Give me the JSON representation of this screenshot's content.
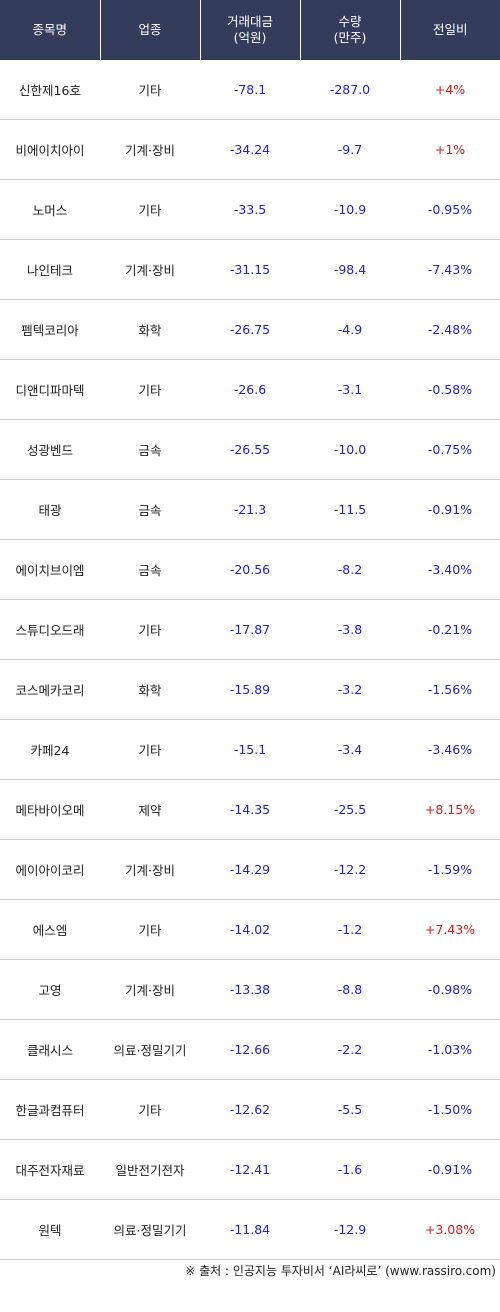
{
  "headers": {
    "name": "종목명",
    "sector": "업종",
    "value_line1": "거래대금",
    "value_line2": "(억원)",
    "volume_line1": "수량",
    "volume_line2": "(만주)",
    "change": "전일비"
  },
  "rows": [
    {
      "name": "신한제16호",
      "sector": "기타",
      "value": "-78.1",
      "volume": "-287.0",
      "change": "+4%"
    },
    {
      "name": "비에이치아이",
      "sector": "기계·장비",
      "value": "-34.24",
      "volume": "-9.7",
      "change": "+1%"
    },
    {
      "name": "노머스",
      "sector": "기타",
      "value": "-33.5",
      "volume": "-10.9",
      "change": "-0.95%"
    },
    {
      "name": "나인테크",
      "sector": "기계·장비",
      "value": "-31.15",
      "volume": "-98.4",
      "change": "-7.43%"
    },
    {
      "name": "펨텍코리아",
      "sector": "화학",
      "value": "-26.75",
      "volume": "-4.9",
      "change": "-2.48%"
    },
    {
      "name": "디앤디파마텍",
      "sector": "기타",
      "value": "-26.6",
      "volume": "-3.1",
      "change": "-0.58%"
    },
    {
      "name": "성광벤드",
      "sector": "금속",
      "value": "-26.55",
      "volume": "-10.0",
      "change": "-0.75%"
    },
    {
      "name": "태광",
      "sector": "금속",
      "value": "-21.3",
      "volume": "-11.5",
      "change": "-0.91%"
    },
    {
      "name": "에이치브이엠",
      "sector": "금속",
      "value": "-20.56",
      "volume": "-8.2",
      "change": "-3.40%"
    },
    {
      "name": "스튜디오드래",
      "sector": "기타",
      "value": "-17.87",
      "volume": "-3.8",
      "change": "-0.21%"
    },
    {
      "name": "코스메카코리",
      "sector": "화학",
      "value": "-15.89",
      "volume": "-3.2",
      "change": "-1.56%"
    },
    {
      "name": "카페24",
      "sector": "기타",
      "value": "-15.1",
      "volume": "-3.4",
      "change": "-3.46%"
    },
    {
      "name": "메타바이오메",
      "sector": "제약",
      "value": "-14.35",
      "volume": "-25.5",
      "change": "+8.15%"
    },
    {
      "name": "에이아이코리",
      "sector": "기계·장비",
      "value": "-14.29",
      "volume": "-12.2",
      "change": "-1.59%"
    },
    {
      "name": "에스엠",
      "sector": "기타",
      "value": "-14.02",
      "volume": "-1.2",
      "change": "+7.43%"
    },
    {
      "name": "고영",
      "sector": "기계·장비",
      "value": "-13.38",
      "volume": "-8.8",
      "change": "-0.98%"
    },
    {
      "name": "클래시스",
      "sector": "의료·정밀기기",
      "value": "-12.66",
      "volume": "-2.2",
      "change": "-1.03%"
    },
    {
      "name": "한글과컴퓨터",
      "sector": "기타",
      "value": "-12.62",
      "volume": "-5.5",
      "change": "-1.50%"
    },
    {
      "name": "대주전자재료",
      "sector": "일반전기전자",
      "value": "-12.41",
      "volume": "-1.6",
      "change": "-0.91%"
    },
    {
      "name": "원텍",
      "sector": "의료·정밀기기",
      "value": "-11.84",
      "volume": "-12.9",
      "change": "+3.08%"
    }
  ],
  "source": "※ 출처 : 인공지능 투자비서 ‘AI라씨로’ (www.rassiro.com)",
  "colors": {
    "header_bg": "#343c5c",
    "positive": "#d42020",
    "negative": "#2424b8"
  }
}
